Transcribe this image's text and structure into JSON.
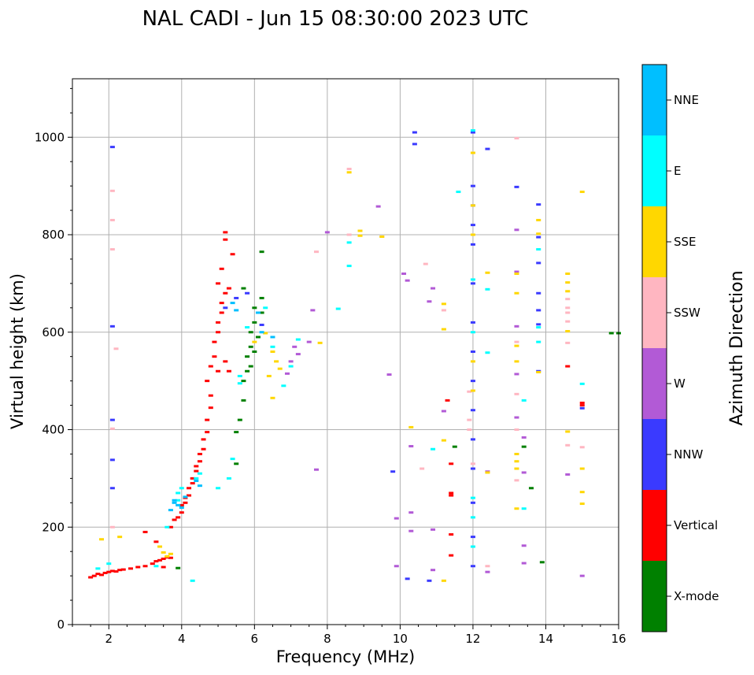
{
  "chart_data": {
    "type": "scatter",
    "title": "NAL CADI - Jun 15 08:30:00 2023 UTC",
    "xlabel": "Frequency (MHz)",
    "ylabel": "Virtual height (km)",
    "xlim": [
      1,
      16
    ],
    "ylim": [
      0,
      1120
    ],
    "xticks": [
      2,
      4,
      6,
      8,
      10,
      12,
      14,
      16
    ],
    "yticks": [
      0,
      200,
      400,
      600,
      800,
      1000
    ],
    "grid": true,
    "colorbar": {
      "label": "Azimuth Direction",
      "categories": [
        "X-mode",
        "Vertical",
        "NNW",
        "W",
        "SSW",
        "SSE",
        "E",
        "NNE"
      ],
      "colors": {
        "X-mode": "#008000",
        "Vertical": "#ff0000",
        "NNW": "#3a3aff",
        "W": "#b25ad6",
        "SSW": "#ffb6c1",
        "SSE": "#ffd700",
        "E": "#00ffff",
        "NNE": "#00bfff"
      }
    },
    "series": [
      {
        "name": "Vertical",
        "points": [
          [
            1.5,
            97
          ],
          [
            1.6,
            100
          ],
          [
            1.7,
            104
          ],
          [
            1.8,
            102
          ],
          [
            1.9,
            106
          ],
          [
            2.0,
            108
          ],
          [
            2.1,
            110
          ],
          [
            2.2,
            109
          ],
          [
            2.3,
            112
          ],
          [
            2.4,
            113
          ],
          [
            2.6,
            115
          ],
          [
            2.8,
            118
          ],
          [
            3.0,
            120
          ],
          [
            3.2,
            125
          ],
          [
            3.3,
            130
          ],
          [
            3.4,
            132
          ],
          [
            3.5,
            135
          ],
          [
            3.6,
            138
          ],
          [
            3.7,
            137
          ],
          [
            3.5,
            118
          ],
          [
            3.0,
            190
          ],
          [
            3.3,
            170
          ],
          [
            3.7,
            200
          ],
          [
            3.8,
            215
          ],
          [
            3.9,
            220
          ],
          [
            4.0,
            230
          ],
          [
            4.0,
            245
          ],
          [
            4.1,
            250
          ],
          [
            4.1,
            260
          ],
          [
            4.2,
            265
          ],
          [
            4.2,
            280
          ],
          [
            4.3,
            290
          ],
          [
            4.3,
            300
          ],
          [
            4.4,
            315
          ],
          [
            4.4,
            325
          ],
          [
            4.5,
            335
          ],
          [
            4.5,
            350
          ],
          [
            4.6,
            360
          ],
          [
            4.6,
            380
          ],
          [
            4.7,
            395
          ],
          [
            4.7,
            420
          ],
          [
            4.8,
            445
          ],
          [
            4.8,
            470
          ],
          [
            4.7,
            500
          ],
          [
            4.8,
            530
          ],
          [
            4.9,
            550
          ],
          [
            4.9,
            580
          ],
          [
            5.0,
            600
          ],
          [
            5.0,
            620
          ],
          [
            5.1,
            640
          ],
          [
            5.1,
            660
          ],
          [
            5.2,
            680
          ],
          [
            5.0,
            700
          ],
          [
            5.2,
            540
          ],
          [
            5.3,
            520
          ],
          [
            5.2,
            790
          ],
          [
            5.2,
            805
          ],
          [
            5.4,
            760
          ],
          [
            5.1,
            730
          ],
          [
            5.3,
            690
          ],
          [
            5.0,
            520
          ],
          [
            11.3,
            460
          ],
          [
            11.4,
            330
          ],
          [
            11.4,
            270
          ],
          [
            11.4,
            265
          ],
          [
            11.4,
            185
          ],
          [
            11.4,
            142
          ],
          [
            14.6,
            530
          ],
          [
            15.0,
            455
          ],
          [
            15.0,
            450
          ]
        ]
      },
      {
        "name": "X-mode",
        "points": [
          [
            3.9,
            116
          ],
          [
            5.5,
            330
          ],
          [
            5.5,
            395
          ],
          [
            5.6,
            420
          ],
          [
            5.7,
            460
          ],
          [
            5.7,
            500
          ],
          [
            5.8,
            520
          ],
          [
            5.8,
            550
          ],
          [
            5.9,
            570
          ],
          [
            5.9,
            600
          ],
          [
            6.0,
            620
          ],
          [
            6.0,
            650
          ],
          [
            6.2,
            670
          ],
          [
            6.2,
            640
          ],
          [
            5.7,
            690
          ],
          [
            6.2,
            765
          ],
          [
            6.1,
            590
          ],
          [
            6.0,
            560
          ],
          [
            5.9,
            530
          ],
          [
            11.5,
            365
          ],
          [
            13.4,
            365
          ],
          [
            13.6,
            280
          ],
          [
            13.9,
            128
          ],
          [
            15.8,
            598
          ],
          [
            16.0,
            598
          ]
        ]
      },
      {
        "name": "NNW",
        "points": [
          [
            2.1,
            980
          ],
          [
            2.1,
            612
          ],
          [
            2.1,
            420
          ],
          [
            2.1,
            338
          ],
          [
            2.1,
            280
          ],
          [
            5.2,
            650
          ],
          [
            5.5,
            670
          ],
          [
            5.8,
            680
          ],
          [
            6.2,
            615
          ],
          [
            9.8,
            314
          ],
          [
            10.4,
            1010
          ],
          [
            10.4,
            986
          ],
          [
            12.0,
            1010
          ],
          [
            12.0,
            900
          ],
          [
            12.0,
            860
          ],
          [
            12.0,
            820
          ],
          [
            12.0,
            780
          ],
          [
            12.0,
            700
          ],
          [
            12.0,
            620
          ],
          [
            12.0,
            560
          ],
          [
            12.0,
            500
          ],
          [
            12.0,
            440
          ],
          [
            12.0,
            380
          ],
          [
            12.0,
            320
          ],
          [
            12.0,
            250
          ],
          [
            12.0,
            180
          ],
          [
            12.0,
            120
          ],
          [
            12.4,
            976
          ],
          [
            13.2,
            898
          ],
          [
            13.8,
            862
          ],
          [
            13.8,
            795
          ],
          [
            13.8,
            742
          ],
          [
            13.8,
            680
          ],
          [
            13.8,
            645
          ],
          [
            13.8,
            616
          ],
          [
            13.8,
            520
          ],
          [
            15.0,
            444
          ],
          [
            10.2,
            94
          ],
          [
            10.8,
            90
          ]
        ]
      },
      {
        "name": "W",
        "points": [
          [
            6.9,
            515
          ],
          [
            7.0,
            540
          ],
          [
            7.2,
            555
          ],
          [
            7.1,
            570
          ],
          [
            7.5,
            580
          ],
          [
            7.6,
            645
          ],
          [
            7.7,
            318
          ],
          [
            8.0,
            805
          ],
          [
            9.4,
            858
          ],
          [
            9.7,
            513
          ],
          [
            9.9,
            218
          ],
          [
            9.9,
            120
          ],
          [
            10.1,
            720
          ],
          [
            10.2,
            706
          ],
          [
            10.3,
            366
          ],
          [
            10.3,
            230
          ],
          [
            10.3,
            192
          ],
          [
            10.8,
            663
          ],
          [
            10.9,
            690
          ],
          [
            10.9,
            195
          ],
          [
            10.9,
            112
          ],
          [
            11.2,
            438
          ],
          [
            13.2,
            810
          ],
          [
            13.2,
            724
          ],
          [
            13.2,
            612
          ],
          [
            13.2,
            514
          ],
          [
            13.2,
            425
          ],
          [
            13.4,
            384
          ],
          [
            13.4,
            312
          ],
          [
            13.4,
            162
          ],
          [
            13.4,
            126
          ],
          [
            14.6,
            308
          ],
          [
            15.0,
            100
          ],
          [
            12.4,
            108
          ],
          [
            12.4,
            314
          ]
        ]
      },
      {
        "name": "SSW",
        "points": [
          [
            2.1,
            890
          ],
          [
            2.1,
            830
          ],
          [
            2.1,
            770
          ],
          [
            2.2,
            566
          ],
          [
            2.1,
            402
          ],
          [
            2.1,
            200
          ],
          [
            7.7,
            765
          ],
          [
            8.6,
            935
          ],
          [
            8.6,
            800
          ],
          [
            9.5,
            796
          ],
          [
            10.7,
            740
          ],
          [
            10.6,
            320
          ],
          [
            11.2,
            645
          ],
          [
            11.9,
            478
          ],
          [
            11.9,
            420
          ],
          [
            11.9,
            400
          ],
          [
            12.0,
            330
          ],
          [
            12.4,
            120
          ],
          [
            13.2,
            998
          ],
          [
            13.2,
            580
          ],
          [
            13.2,
            473
          ],
          [
            13.2,
            400
          ],
          [
            13.2,
            296
          ],
          [
            14.6,
            668
          ],
          [
            14.6,
            650
          ],
          [
            14.6,
            640
          ],
          [
            14.6,
            622
          ],
          [
            14.6,
            578
          ],
          [
            14.6,
            368
          ],
          [
            15.0,
            364
          ]
        ]
      },
      {
        "name": "SSE",
        "points": [
          [
            1.8,
            175
          ],
          [
            2.3,
            180
          ],
          [
            3.4,
            160
          ],
          [
            3.5,
            148
          ],
          [
            3.6,
            140
          ],
          [
            3.7,
            145
          ],
          [
            6.5,
            560
          ],
          [
            6.6,
            540
          ],
          [
            6.7,
            525
          ],
          [
            6.4,
            510
          ],
          [
            6.5,
            465
          ],
          [
            6.0,
            580
          ],
          [
            6.3,
            598
          ],
          [
            7.8,
            578
          ],
          [
            8.6,
            928
          ],
          [
            8.9,
            808
          ],
          [
            8.9,
            798
          ],
          [
            9.5,
            796
          ],
          [
            10.3,
            405
          ],
          [
            11.2,
            606
          ],
          [
            11.2,
            378
          ],
          [
            11.2,
            658
          ],
          [
            11.2,
            90
          ],
          [
            12.0,
            968
          ],
          [
            12.0,
            860
          ],
          [
            12.0,
            800
          ],
          [
            12.0,
            540
          ],
          [
            12.0,
            480
          ],
          [
            12.4,
            722
          ],
          [
            12.4,
            312
          ],
          [
            13.2,
            720
          ],
          [
            13.2,
            680
          ],
          [
            13.2,
            572
          ],
          [
            13.2,
            540
          ],
          [
            13.2,
            350
          ],
          [
            13.2,
            335
          ],
          [
            13.2,
            320
          ],
          [
            13.2,
            238
          ],
          [
            13.8,
            830
          ],
          [
            13.8,
            802
          ],
          [
            13.8,
            518
          ],
          [
            14.6,
            720
          ],
          [
            14.6,
            702
          ],
          [
            14.6,
            684
          ],
          [
            14.6,
            602
          ],
          [
            14.6,
            396
          ],
          [
            15.0,
            888
          ],
          [
            15.0,
            320
          ],
          [
            15.0,
            272
          ],
          [
            15.0,
            248
          ]
        ]
      },
      {
        "name": "E",
        "points": [
          [
            1.7,
            115
          ],
          [
            2.0,
            125
          ],
          [
            3.3,
            120
          ],
          [
            3.6,
            200
          ],
          [
            3.9,
            255
          ],
          [
            3.9,
            270
          ],
          [
            4.0,
            280
          ],
          [
            4.4,
            300
          ],
          [
            4.5,
            310
          ],
          [
            5.0,
            280
          ],
          [
            5.3,
            300
          ],
          [
            5.4,
            340
          ],
          [
            5.6,
            510
          ],
          [
            5.6,
            495
          ],
          [
            5.8,
            610
          ],
          [
            6.3,
            650
          ],
          [
            6.5,
            570
          ],
          [
            6.8,
            490
          ],
          [
            7.2,
            585
          ],
          [
            7.0,
            530
          ],
          [
            4.3,
            90
          ],
          [
            8.3,
            648
          ],
          [
            8.6,
            784
          ],
          [
            8.6,
            736
          ],
          [
            10.9,
            360
          ],
          [
            11.6,
            888
          ],
          [
            12.0,
            1014
          ],
          [
            12.0,
            708
          ],
          [
            12.0,
            600
          ],
          [
            12.0,
            260
          ],
          [
            12.0,
            220
          ],
          [
            12.0,
            160
          ],
          [
            12.4,
            688
          ],
          [
            12.4,
            558
          ],
          [
            13.4,
            460
          ],
          [
            13.4,
            238
          ],
          [
            13.8,
            770
          ],
          [
            13.8,
            610
          ],
          [
            13.8,
            580
          ],
          [
            15.0,
            494
          ]
        ]
      },
      {
        "name": "NNE",
        "points": [
          [
            3.8,
            250
          ],
          [
            3.9,
            245
          ],
          [
            4.0,
            240
          ],
          [
            3.7,
            235
          ],
          [
            3.8,
            255
          ],
          [
            4.1,
            262
          ],
          [
            4.4,
            295
          ],
          [
            4.5,
            285
          ],
          [
            5.4,
            660
          ],
          [
            5.5,
            645
          ],
          [
            6.1,
            640
          ],
          [
            6.2,
            600
          ],
          [
            6.5,
            590
          ]
        ]
      }
    ]
  }
}
